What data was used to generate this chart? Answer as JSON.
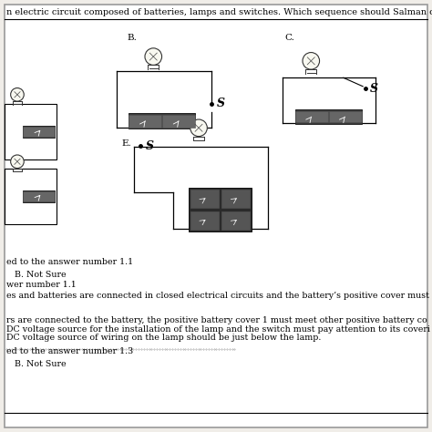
{
  "bg_color": "#f0ede8",
  "fig_bg": "#f0ede8",
  "title_text": "n electric circuit composed of batteries, lamps and switches. Which sequence should Salman ch",
  "label_B": "B.",
  "label_C": "C.",
  "label_E": "E.",
  "text_answer_1": "ed to the answer number 1.1",
  "text_B_not_sure": "   B. Not Sure",
  "text_answer_number": "wer number 1.1",
  "text_paragraph": "es and batteries are connected in closed electrical circuits and the battery’s positive cover must",
  "text_para2_line1": "rs are connected to the battery, the positive battery cover 1 must meet other positive battery co",
  "text_para2_line2": "DC voltage source for the installation of the lamp and the switch must pay attention to its coveri",
  "text_para2_line3": "DC voltage source of wiring on the lamp should be just below the lamp.",
  "text_answer_2": "ed to the answer number 1.3",
  "text_B_not_sure2": "   B. Not Sure",
  "fs": 6.8,
  "fst": 7.0
}
